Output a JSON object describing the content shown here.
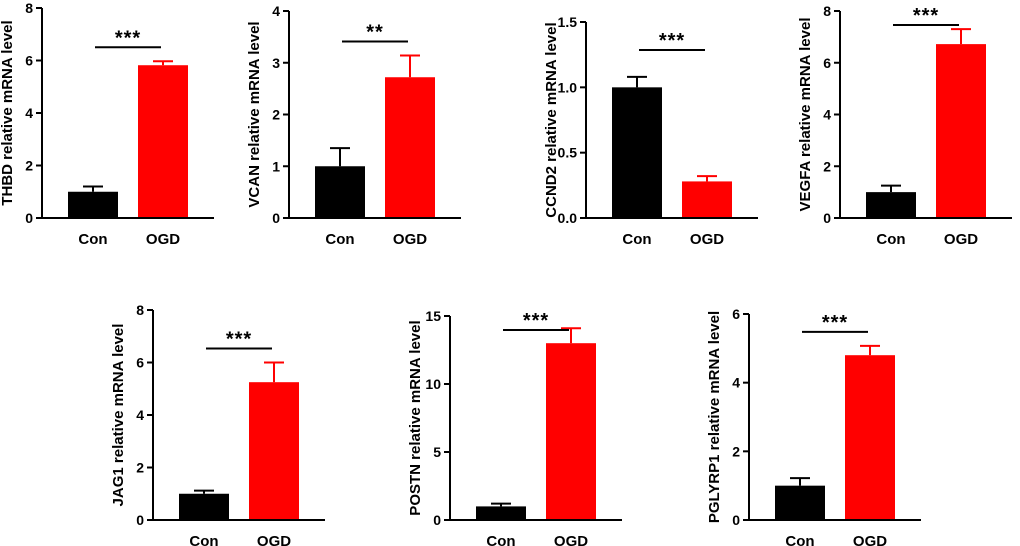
{
  "colors": {
    "con": "#000000",
    "ogd": "#ff0000",
    "axis": "#000000"
  },
  "chart_data": [
    {
      "type": "bar",
      "ylabel": "THBD relative mRNA level",
      "categories": [
        "Con",
        "OGD"
      ],
      "values": [
        1.0,
        5.82
      ],
      "errors": [
        0.2,
        0.15
      ],
      "ylim": [
        0,
        8
      ],
      "yticks": [
        0,
        2,
        4,
        6,
        8
      ],
      "significance": "***"
    },
    {
      "type": "bar",
      "ylabel": "VCAN relative mRNA level",
      "categories": [
        "Con",
        "OGD"
      ],
      "values": [
        1.0,
        2.72
      ],
      "errors": [
        0.35,
        0.42
      ],
      "ylim": [
        0,
        4
      ],
      "yticks": [
        0,
        1,
        2,
        3,
        4
      ],
      "significance": "**"
    },
    {
      "type": "bar",
      "ylabel": "CCND2 relative mRNA level",
      "categories": [
        "Con",
        "OGD"
      ],
      "values": [
        1.0,
        0.28
      ],
      "errors": [
        0.08,
        0.04
      ],
      "ylim": [
        0,
        1.5
      ],
      "yticks": [
        "0.0",
        "0.5",
        "1.0",
        "1.5"
      ],
      "significance": "***"
    },
    {
      "type": "bar",
      "ylabel": "VEGFA relative mRNA level",
      "categories": [
        "Con",
        "OGD"
      ],
      "values": [
        1.0,
        6.72
      ],
      "errors": [
        0.25,
        0.58
      ],
      "ylim": [
        0,
        8
      ],
      "yticks": [
        0,
        2,
        4,
        6,
        8
      ],
      "significance": "***"
    },
    {
      "type": "bar",
      "ylabel": "JAG1 relative mRNA level",
      "categories": [
        "Con",
        "OGD"
      ],
      "values": [
        1.0,
        5.25
      ],
      "errors": [
        0.12,
        0.75
      ],
      "ylim": [
        0,
        8
      ],
      "yticks": [
        0,
        2,
        4,
        6,
        8
      ],
      "significance": "***"
    },
    {
      "type": "bar",
      "ylabel": "POSTN relative mRNA level",
      "categories": [
        "Con",
        "OGD"
      ],
      "values": [
        1.0,
        13.0
      ],
      "errors": [
        0.2,
        1.1
      ],
      "ylim": [
        0,
        15
      ],
      "yticks": [
        0,
        5,
        10,
        15
      ],
      "significance": "***"
    },
    {
      "type": "bar",
      "ylabel": "PGLYRP1 relative mRNA level",
      "categories": [
        "Con",
        "OGD"
      ],
      "values": [
        1.0,
        4.8
      ],
      "errors": [
        0.22,
        0.27
      ],
      "ylim": [
        0,
        6
      ],
      "yticks": [
        0,
        2,
        4,
        6
      ],
      "significance": "***"
    }
  ]
}
